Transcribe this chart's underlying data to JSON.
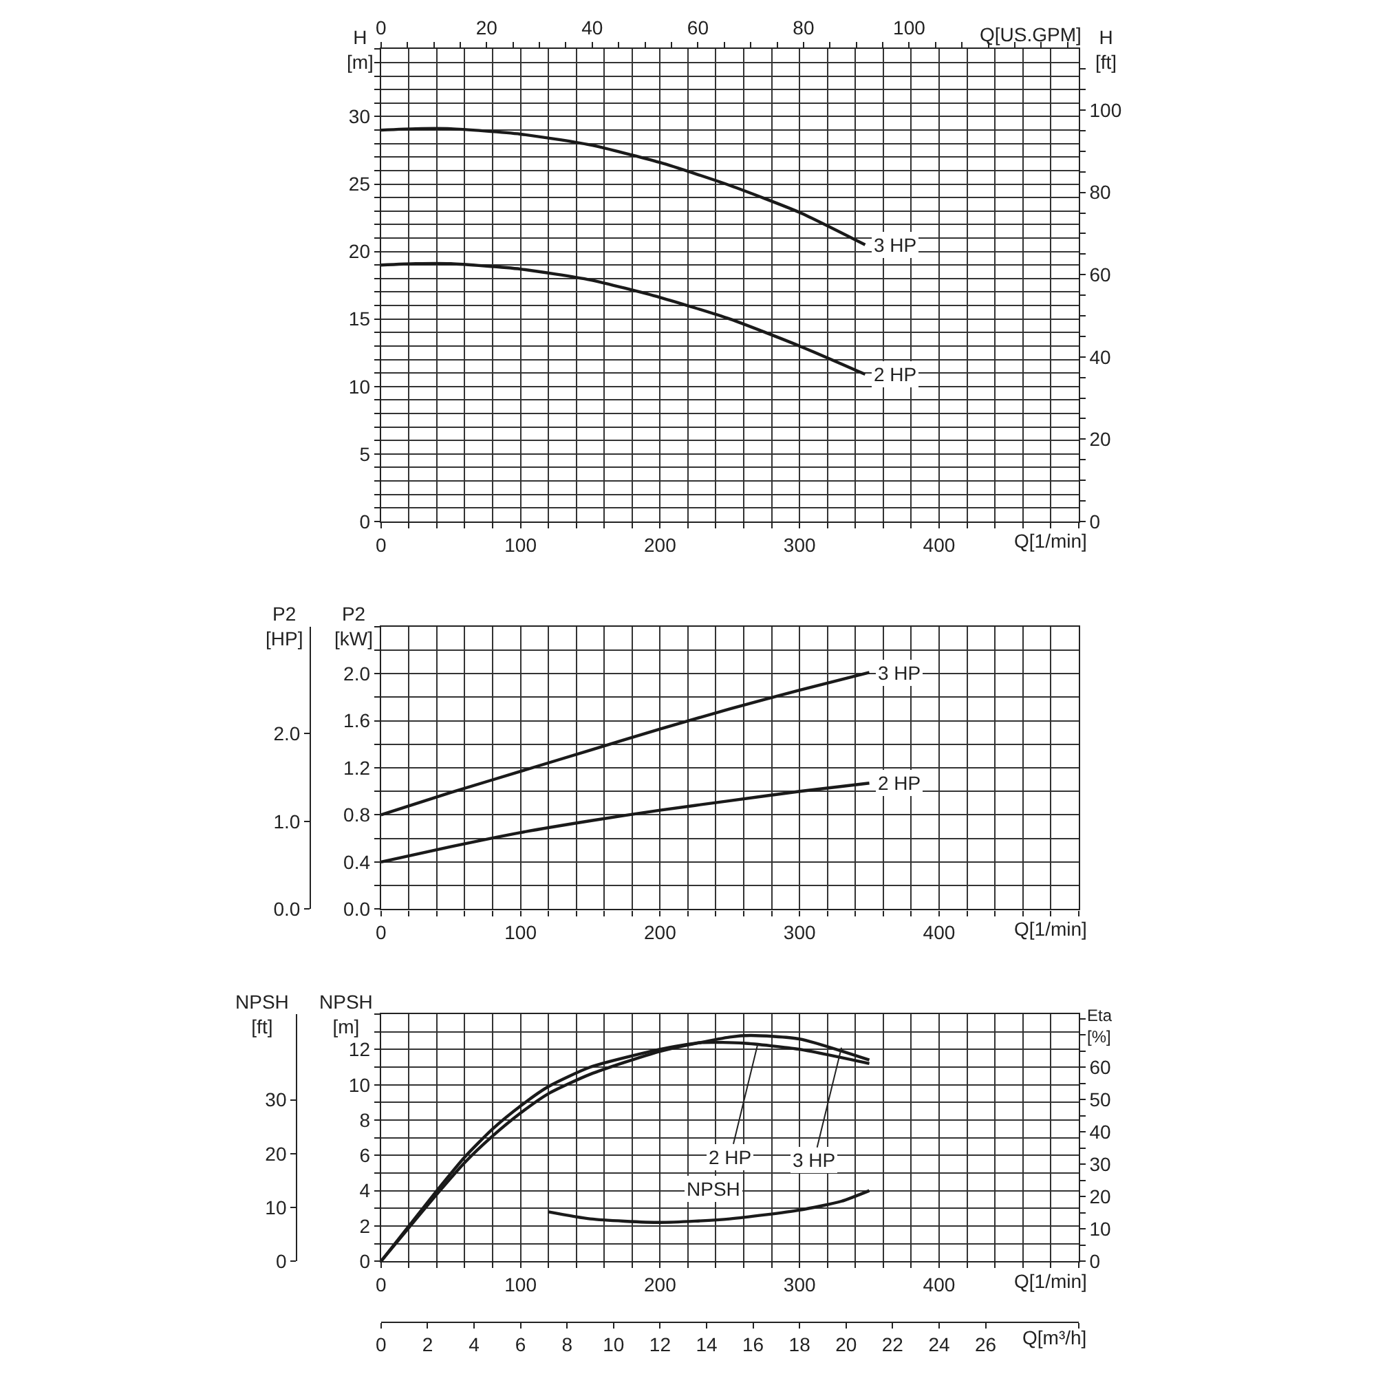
{
  "chart_data": [
    {
      "type": "line",
      "xlabel": "Q[1/min]",
      "x2label": "Q[US.GPM]",
      "ylabel": "H\n[m]",
      "y2label": "H\n[ft]",
      "grid": true,
      "marker": "none",
      "line_style": "solid",
      "xlim": [
        0,
        500
      ],
      "x2lim": [
        0,
        132.09
      ],
      "ylim": [
        0,
        35
      ],
      "y2lim": [
        0,
        114.83
      ],
      "xticks": [
        0,
        {
          "value": 20,
          "label": null
        },
        {
          "value": 40,
          "label": null
        },
        {
          "value": 60,
          "label": null
        },
        {
          "value": 80,
          "label": null
        },
        100,
        {
          "value": 120,
          "label": null
        },
        {
          "value": 140,
          "label": null
        },
        {
          "value": 160,
          "label": null
        },
        {
          "value": 180,
          "label": null
        },
        200,
        {
          "value": 220,
          "label": null
        },
        {
          "value": 240,
          "label": null
        },
        {
          "value": 260,
          "label": null
        },
        {
          "value": 280,
          "label": null
        },
        300,
        {
          "value": 320,
          "label": null
        },
        {
          "value": 340,
          "label": null
        },
        {
          "value": 360,
          "label": null
        },
        {
          "value": 380,
          "label": null
        },
        400,
        {
          "value": 420,
          "label": null
        },
        {
          "value": 440,
          "label": null
        },
        {
          "value": 460,
          "label": null
        },
        {
          "value": 480,
          "label": null
        },
        {
          "value": 500,
          "label": null
        }
      ],
      "x2ticks": [
        0,
        {
          "value": 5,
          "label": null
        },
        {
          "value": 10,
          "label": null
        },
        {
          "value": 15,
          "label": null
        },
        20,
        {
          "value": 25,
          "label": null
        },
        {
          "value": 30,
          "label": null
        },
        {
          "value": 35,
          "label": null
        },
        40,
        {
          "value": 45,
          "label": null
        },
        {
          "value": 50,
          "label": null
        },
        {
          "value": 55,
          "label": null
        },
        60,
        {
          "value": 65,
          "label": null
        },
        {
          "value": 70,
          "label": null
        },
        {
          "value": 75,
          "label": null
        },
        80,
        {
          "value": 85,
          "label": null
        },
        {
          "value": 90,
          "label": null
        },
        {
          "value": 95,
          "label": null
        },
        100,
        {
          "value": 105,
          "label": null
        },
        {
          "value": 110,
          "label": null
        },
        {
          "value": 115,
          "label": null
        },
        {
          "value": 120,
          "label": null
        },
        {
          "value": 125,
          "label": null
        },
        {
          "value": 130,
          "label": null
        }
      ],
      "yticks": [
        0,
        {
          "value": 1,
          "label": null
        },
        {
          "value": 2,
          "label": null
        },
        {
          "value": 3,
          "label": null
        },
        {
          "value": 4,
          "label": null
        },
        5,
        {
          "value": 6,
          "label": null
        },
        {
          "value": 7,
          "label": null
        },
        {
          "value": 8,
          "label": null
        },
        {
          "value": 9,
          "label": null
        },
        10,
        {
          "value": 11,
          "label": null
        },
        {
          "value": 12,
          "label": null
        },
        {
          "value": 13,
          "label": null
        },
        {
          "value": 14,
          "label": null
        },
        15,
        {
          "value": 16,
          "label": null
        },
        {
          "value": 17,
          "label": null
        },
        {
          "value": 18,
          "label": null
        },
        {
          "value": 19,
          "label": null
        },
        20,
        {
          "value": 21,
          "label": null
        },
        {
          "value": 22,
          "label": null
        },
        {
          "value": 23,
          "label": null
        },
        {
          "value": 24,
          "label": null
        },
        25,
        {
          "value": 26,
          "label": null
        },
        {
          "value": 27,
          "label": null
        },
        {
          "value": 28,
          "label": null
        },
        {
          "value": 29,
          "label": null
        },
        30,
        {
          "value": 31,
          "label": null
        },
        {
          "value": 32,
          "label": null
        },
        {
          "value": 33,
          "label": null
        },
        {
          "value": 34,
          "label": null
        },
        {
          "value": 35,
          "label": null
        }
      ],
      "y2ticks": [
        0,
        {
          "value": 5,
          "label": null
        },
        {
          "value": 10,
          "label": null
        },
        {
          "value": 15,
          "label": null
        },
        20,
        {
          "value": 25,
          "label": null
        },
        {
          "value": 30,
          "label": null
        },
        {
          "value": 35,
          "label": null
        },
        40,
        {
          "value": 45,
          "label": null
        },
        {
          "value": 50,
          "label": null
        },
        {
          "value": 55,
          "label": null
        },
        60,
        {
          "value": 65,
          "label": null
        },
        {
          "value": 70,
          "label": null
        },
        {
          "value": 75,
          "label": null
        },
        80,
        {
          "value": 85,
          "label": null
        },
        {
          "value": 90,
          "label": null
        },
        {
          "value": 95,
          "label": null
        },
        100,
        {
          "value": 105,
          "label": null
        },
        {
          "value": 110,
          "label": null
        }
      ],
      "series": [
        {
          "name": "3 HP",
          "color": "#1a1a1a",
          "x": [
            0,
            25,
            50,
            100,
            150,
            200,
            250,
            300,
            347
          ],
          "values": [
            29,
            29.1,
            29.1,
            28.7,
            27.9,
            26.6,
            24.9,
            22.9,
            20.5
          ]
        },
        {
          "name": "2 HP",
          "color": "#1a1a1a",
          "x": [
            0,
            25,
            50,
            100,
            150,
            200,
            250,
            300,
            347
          ],
          "values": [
            19,
            19.1,
            19.1,
            18.7,
            17.9,
            16.6,
            15.0,
            13.0,
            10.9
          ]
        }
      ]
    },
    {
      "type": "line",
      "xlabel": "Q[1/min]",
      "ylabel": "P2\n[kW]",
      "y2label": "P2\n[HP]",
      "grid": true,
      "marker": "none",
      "line_style": "solid",
      "xlim": [
        0,
        500
      ],
      "ylim": [
        0,
        2.4
      ],
      "y2lim": [
        0,
        3.2185
      ],
      "xticks": [
        0,
        {
          "value": 20,
          "label": null
        },
        {
          "value": 40,
          "label": null
        },
        {
          "value": 60,
          "label": null
        },
        {
          "value": 80,
          "label": null
        },
        100,
        {
          "value": 120,
          "label": null
        },
        {
          "value": 140,
          "label": null
        },
        {
          "value": 160,
          "label": null
        },
        {
          "value": 180,
          "label": null
        },
        200,
        {
          "value": 220,
          "label": null
        },
        {
          "value": 240,
          "label": null
        },
        {
          "value": 260,
          "label": null
        },
        {
          "value": 280,
          "label": null
        },
        300,
        {
          "value": 320,
          "label": null
        },
        {
          "value": 340,
          "label": null
        },
        {
          "value": 360,
          "label": null
        },
        {
          "value": 380,
          "label": null
        },
        400,
        {
          "value": 420,
          "label": null
        },
        {
          "value": 440,
          "label": null
        },
        {
          "value": 460,
          "label": null
        },
        {
          "value": 480,
          "label": null
        },
        {
          "value": 500,
          "label": null
        }
      ],
      "yticks": [
        {
          "value": 0,
          "label": "0.0"
        },
        {
          "value": 0.2,
          "label": null
        },
        0.4,
        {
          "value": 0.6,
          "label": null
        },
        0.8,
        {
          "value": 1.0,
          "label": null
        },
        1.2,
        {
          "value": 1.4,
          "label": null
        },
        1.6,
        {
          "value": 1.8,
          "label": null
        },
        {
          "value": 2.0,
          "label": "2.0"
        },
        {
          "value": 2.2,
          "label": null
        },
        {
          "value": 2.4,
          "label": null
        }
      ],
      "y2ticks": [
        {
          "value": 0,
          "label": "0.0"
        },
        {
          "value": 1,
          "label": "1.0"
        },
        {
          "value": 2,
          "label": "2.0"
        }
      ],
      "series": [
        {
          "name": "3 HP",
          "color": "#1a1a1a",
          "x": [
            0,
            50,
            100,
            150,
            200,
            250,
            300,
            350
          ],
          "values": [
            0.8,
            0.99,
            1.17,
            1.35,
            1.53,
            1.7,
            1.86,
            2.01
          ]
        },
        {
          "name": "2 HP",
          "color": "#1a1a1a",
          "x": [
            0,
            50,
            100,
            150,
            200,
            250,
            300,
            350
          ],
          "values": [
            0.4,
            0.53,
            0.65,
            0.75,
            0.84,
            0.92,
            1.0,
            1.07
          ]
        }
      ]
    },
    {
      "type": "line",
      "xlabel": "Q[1/min]",
      "x2label": "Q[m³/h]",
      "ylabel": "NPSH\n[m]",
      "y2label": "NPSH\n[ft]",
      "y3label": "Eta\n[%]",
      "grid": true,
      "marker": "none",
      "line_style": "solid",
      "xlim": [
        0,
        500
      ],
      "x2lim": [
        0,
        30
      ],
      "ylim": [
        0,
        14
      ],
      "y2lim": [
        0,
        45.93
      ],
      "y3lim": [
        0,
        76.36
      ],
      "xticks": [
        0,
        {
          "value": 20,
          "label": null
        },
        {
          "value": 40,
          "label": null
        },
        {
          "value": 60,
          "label": null
        },
        {
          "value": 80,
          "label": null
        },
        100,
        {
          "value": 120,
          "label": null
        },
        {
          "value": 140,
          "label": null
        },
        {
          "value": 160,
          "label": null
        },
        {
          "value": 180,
          "label": null
        },
        200,
        {
          "value": 220,
          "label": null
        },
        {
          "value": 240,
          "label": null
        },
        {
          "value": 260,
          "label": null
        },
        {
          "value": 280,
          "label": null
        },
        300,
        {
          "value": 320,
          "label": null
        },
        {
          "value": 340,
          "label": null
        },
        {
          "value": 360,
          "label": null
        },
        {
          "value": 380,
          "label": null
        },
        400,
        {
          "value": 420,
          "label": null
        },
        {
          "value": 440,
          "label": null
        },
        {
          "value": 460,
          "label": null
        },
        {
          "value": 480,
          "label": null
        },
        {
          "value": 500,
          "label": null
        }
      ],
      "x2ticks": [
        0,
        2,
        4,
        6,
        8,
        10,
        12,
        14,
        16,
        18,
        20,
        22,
        24,
        26,
        {
          "value": 30,
          "label": null
        }
      ],
      "yticks": [
        0,
        {
          "value": 1,
          "label": null
        },
        2,
        {
          "value": 3,
          "label": null
        },
        4,
        {
          "value": 5,
          "label": null
        },
        6,
        {
          "value": 7,
          "label": null
        },
        8,
        {
          "value": 9,
          "label": null
        },
        10,
        {
          "value": 11,
          "label": null
        },
        12,
        {
          "value": 13,
          "label": null
        },
        {
          "value": 14,
          "label": null
        }
      ],
      "y2ticks": [
        0,
        10,
        20,
        30
      ],
      "y3ticks": [
        0,
        {
          "value": 5,
          "label": null
        },
        10,
        {
          "value": 15,
          "label": null
        },
        20,
        {
          "value": 25,
          "label": null
        },
        30,
        {
          "value": 35,
          "label": null
        },
        40,
        {
          "value": 45,
          "label": null
        },
        50,
        {
          "value": 55,
          "label": null
        },
        60,
        {
          "value": 65,
          "label": null
        },
        {
          "value": 70,
          "label": null
        },
        {
          "value": 75,
          "label": null
        }
      ],
      "series": [
        {
          "color": "#1a1a1a",
          "axis": "y3",
          "x": [
            0,
            20,
            40,
            60,
            80,
            100,
            120,
            150,
            200,
            230,
            260,
            300,
            350
          ],
          "values": [
            0,
            10.9,
            21.8,
            32.2,
            40.9,
            48.0,
            54.0,
            60.0,
            65.5,
            67.6,
            67.4,
            65.5,
            61.1
          ]
        },
        {
          "color": "#1a1a1a",
          "axis": "y3",
          "x": [
            0,
            20,
            40,
            60,
            80,
            100,
            120,
            150,
            200,
            250,
            265,
            300,
            350
          ],
          "values": [
            0,
            10.4,
            20.7,
            30.5,
            38.7,
            45.8,
            51.8,
            57.8,
            64.9,
            69.3,
            69.8,
            68.7,
            62.2
          ]
        },
        {
          "name": "NPSH",
          "color": "#1a1a1a",
          "x": [
            120,
            150,
            200,
            250,
            300,
            330,
            350
          ],
          "values": [
            2.8,
            2.4,
            2.2,
            2.4,
            2.9,
            3.4,
            4.0
          ]
        }
      ],
      "annotations": [
        {
          "text": "2 HP",
          "x": 270,
          "y": 12.3
        },
        {
          "text": "3 HP",
          "x": 330,
          "y": 12.1
        }
      ]
    }
  ]
}
